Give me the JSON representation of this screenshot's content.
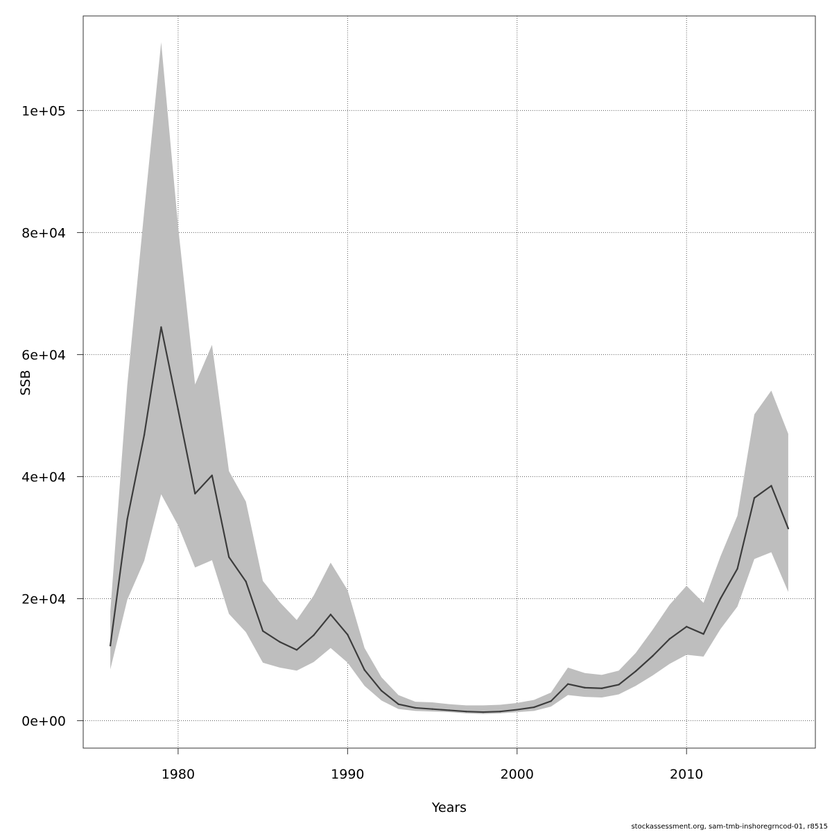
{
  "chart_data": {
    "type": "line",
    "title": "",
    "xlabel": "Years",
    "ylabel": "SSB",
    "xlim": [
      1974.4,
      2017.6
    ],
    "ylim": [
      -4500,
      115500
    ],
    "grid": true,
    "x_ticks": [
      1980,
      1990,
      2000,
      2010
    ],
    "x_tick_labels": [
      "1980",
      "1990",
      "2000",
      "2010"
    ],
    "y_ticks": [
      0,
      20000,
      40000,
      60000,
      80000,
      100000
    ],
    "y_tick_labels": [
      "0e+00",
      "2e+04",
      "4e+04",
      "6e+04",
      "8e+04",
      "1e+05"
    ],
    "x": [
      1976,
      1977,
      1978,
      1979,
      1980,
      1981,
      1982,
      1983,
      1984,
      1985,
      1986,
      1987,
      1988,
      1989,
      1990,
      1991,
      1992,
      1993,
      1994,
      1995,
      1996,
      1997,
      1998,
      1999,
      2000,
      2001,
      2002,
      2003,
      2004,
      2005,
      2006,
      2007,
      2008,
      2009,
      2010,
      2011,
      2012,
      2013,
      2014,
      2015,
      2016
    ],
    "series": [
      {
        "values": [
          12300,
          33000,
          46800,
          64500,
          51000,
          37200,
          40200,
          26800,
          22800,
          14700,
          12900,
          11600,
          14000,
          17400,
          14100,
          8300,
          4900,
          2700,
          2100,
          1900,
          1700,
          1500,
          1400,
          1500,
          1800,
          2200,
          3200,
          6000,
          5400,
          5300,
          5900,
          8100,
          10600,
          13400,
          15400,
          14200,
          20000,
          24900,
          36500,
          38500,
          31500
        ],
        "lower": [
          8400,
          19800,
          26200,
          37100,
          32000,
          25100,
          26300,
          17500,
          14500,
          9500,
          8700,
          8200,
          9600,
          11900,
          9500,
          5700,
          3300,
          1900,
          1600,
          1500,
          1400,
          1200,
          1100,
          1200,
          1400,
          1600,
          2300,
          4200,
          3900,
          3800,
          4300,
          5700,
          7400,
          9300,
          10800,
          10500,
          15000,
          18700,
          26500,
          27600,
          21100
        ],
        "upper": [
          17900,
          55000,
          83500,
          111200,
          81000,
          55100,
          61600,
          40900,
          35900,
          22900,
          19400,
          16500,
          20500,
          25900,
          21400,
          11900,
          7100,
          4200,
          3100,
          3000,
          2700,
          2500,
          2500,
          2600,
          2900,
          3400,
          4600,
          8700,
          7800,
          7500,
          8200,
          11100,
          14900,
          19000,
          22100,
          19300,
          26900,
          33600,
          50200,
          54100,
          47000
        ]
      }
    ],
    "colors": {
      "line": "#3c3c3c",
      "band": "#bebebe",
      "grid": "#5a5a5a",
      "axis": "#333333"
    }
  },
  "footer": {
    "note": "stockassessment.org, sam-tmb-inshoregrncod-01, r8515"
  }
}
